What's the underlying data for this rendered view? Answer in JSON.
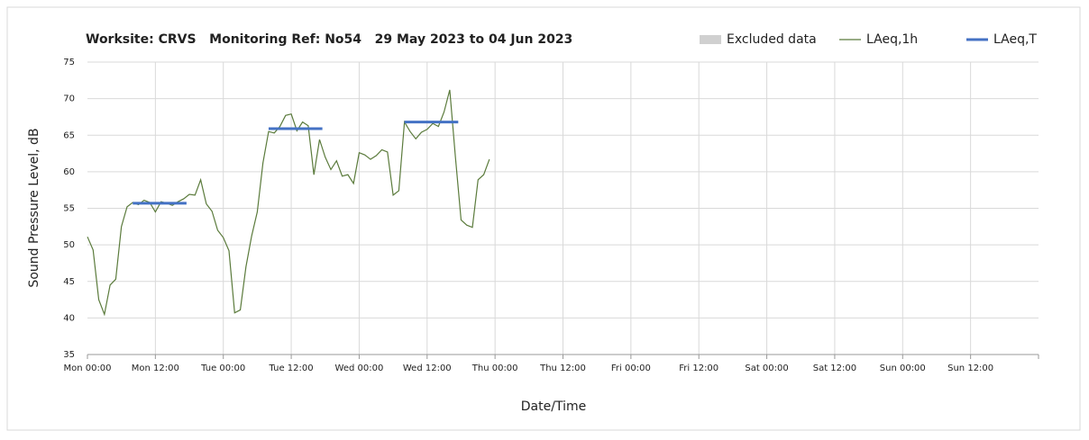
{
  "chart_data": {
    "type": "line",
    "title": "Worksite: CRVS   Monitoring Ref: No54   29 May 2023 to 04 Jun 2023",
    "x_label": "Date/Time",
    "y_label": "Sound Pressure Level, dB",
    "xlim": [
      0,
      168
    ],
    "xticks": [
      {
        "value": 0,
        "label": "Mon 00:00"
      },
      {
        "value": 12,
        "label": "Mon 12:00"
      },
      {
        "value": 24,
        "label": "Tue 00:00"
      },
      {
        "value": 36,
        "label": "Tue 12:00"
      },
      {
        "value": 48,
        "label": "Wed 00:00"
      },
      {
        "value": 60,
        "label": "Wed 12:00"
      },
      {
        "value": 72,
        "label": "Thu 00:00"
      },
      {
        "value": 84,
        "label": "Thu 12:00"
      },
      {
        "value": 96,
        "label": "Fri 00:00"
      },
      {
        "value": 108,
        "label": "Fri 12:00"
      },
      {
        "value": 120,
        "label": "Sat 00:00"
      },
      {
        "value": 132,
        "label": "Sat 12:00"
      },
      {
        "value": 144,
        "label": "Sun 00:00"
      },
      {
        "value": 156,
        "label": "Sun 12:00"
      }
    ],
    "ylim": [
      35,
      75
    ],
    "yticks": [
      35,
      40,
      45,
      50,
      55,
      60,
      65,
      70,
      75
    ],
    "grid": true,
    "series": [
      {
        "name": "Excluded data",
        "color": "#d0d0d0"
      },
      {
        "name": "LAeq,1h",
        "color": "#5b7b3c",
        "x": [
          0,
          1,
          2,
          3,
          4,
          5,
          6,
          7,
          8,
          9,
          10,
          11,
          12,
          13,
          14,
          15,
          16,
          17,
          18,
          19,
          20,
          21,
          22,
          23,
          24,
          25,
          26,
          27,
          28,
          29,
          30,
          31,
          32,
          33,
          34,
          35,
          36,
          37,
          38,
          39,
          40,
          41,
          42,
          43,
          44,
          45,
          46,
          47,
          48,
          49,
          50,
          51,
          52,
          53,
          54,
          55,
          56,
          57,
          58,
          59,
          60,
          61,
          62,
          63,
          64,
          65,
          66,
          67,
          68,
          69,
          70,
          71
        ],
        "values": [
          51.1,
          49.3,
          42.5,
          40.5,
          44.5,
          45.3,
          52.5,
          55.2,
          55.8,
          55.5,
          56.1,
          55.8,
          54.5,
          55.9,
          55.7,
          55.4,
          55.9,
          56.3,
          56.9,
          56.8,
          58.9,
          55.6,
          54.6,
          52,
          51,
          49.2,
          40.7,
          41.1,
          47,
          51.2,
          54.5,
          61.2,
          65.5,
          65.3,
          66.2,
          67.7,
          67.9,
          65.6,
          66.8,
          66.3,
          59.6,
          64.4,
          62,
          60.3,
          61.5,
          59.4,
          59.6,
          58.4,
          62.6,
          62.3,
          61.7,
          62.2,
          63,
          62.7,
          56.8,
          57.4,
          66.8,
          65.5,
          64.5,
          65.4,
          65.8,
          66.6,
          66.2,
          68.2,
          71.2,
          62,
          53.4,
          52.7,
          52.4,
          58.9,
          59.6,
          61.7
        ]
      },
      {
        "name": "LAeq,T",
        "color": "#4472c4",
        "segments": [
          {
            "x": [
              8,
              17.5
            ],
            "value": 55.7
          },
          {
            "x": [
              32,
              41.5
            ],
            "value": 65.9
          },
          {
            "x": [
              56,
              65.5
            ],
            "value": 66.8
          }
        ]
      }
    ]
  }
}
